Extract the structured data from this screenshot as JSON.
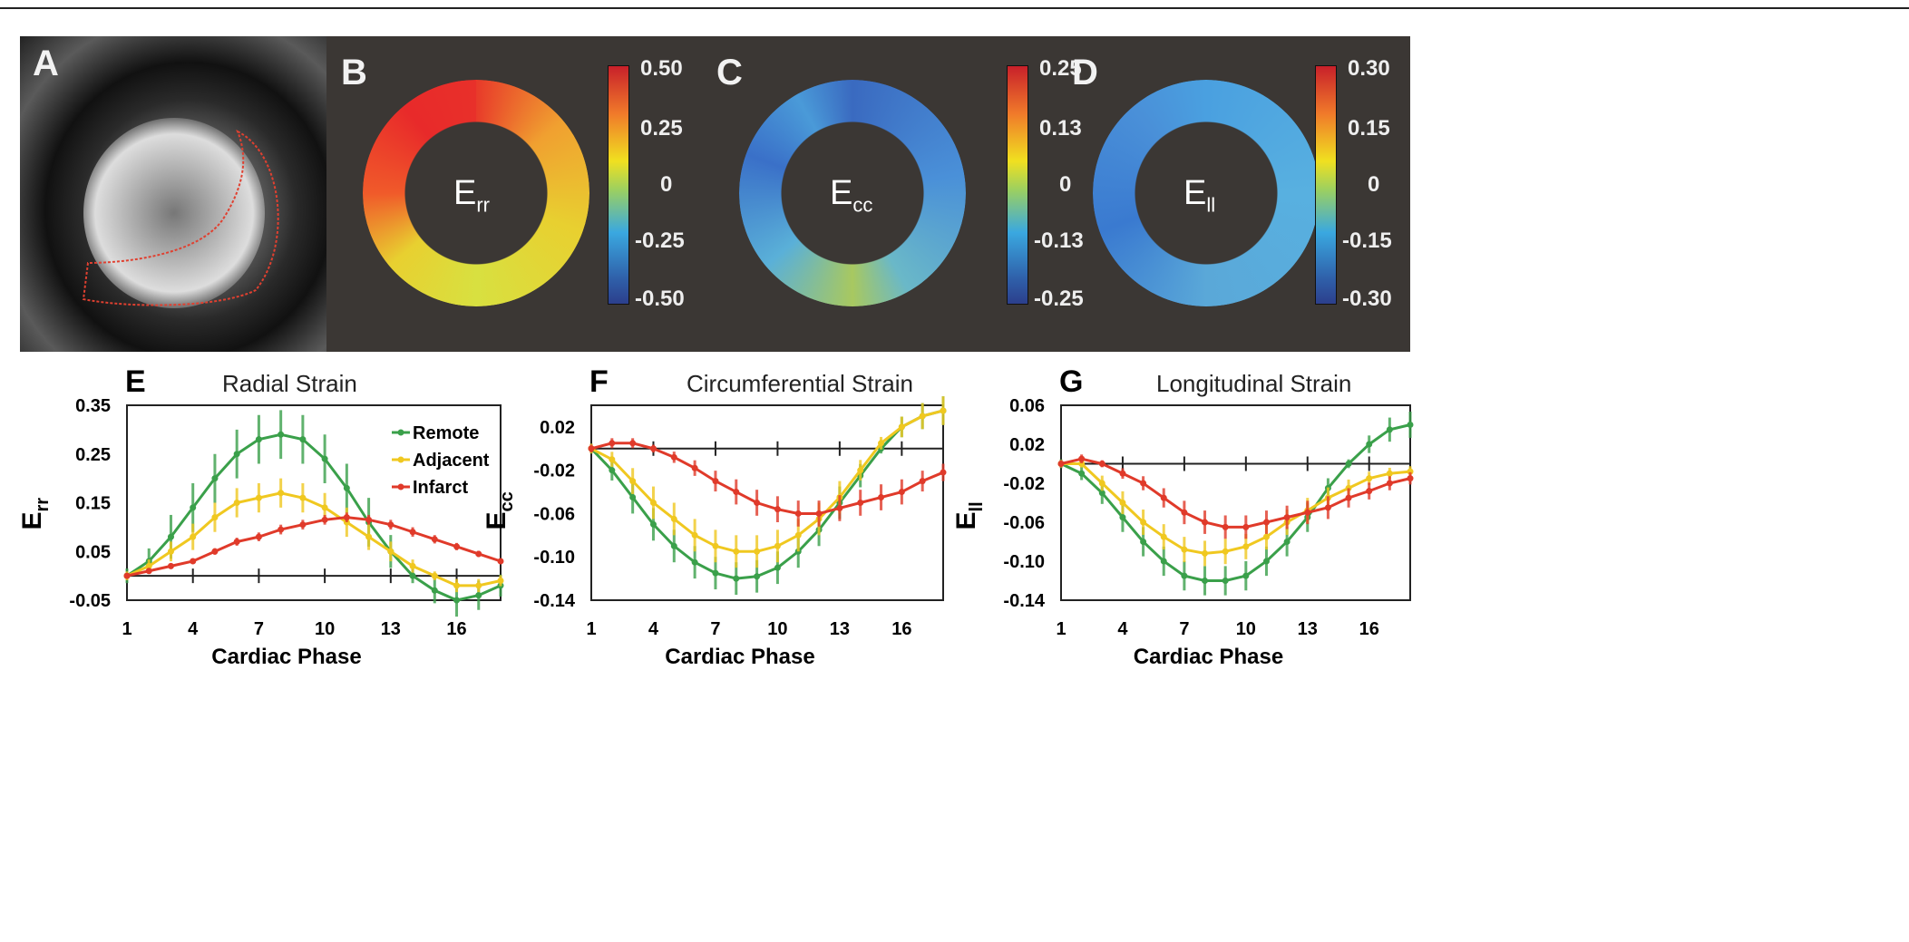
{
  "panels": {
    "A": {
      "label": "A"
    },
    "B": {
      "label": "B",
      "map_label": "E",
      "map_sub": "rr",
      "colorbar": [
        "0.50",
        "0.25",
        "0",
        "-0.25",
        "-0.50"
      ]
    },
    "C": {
      "label": "C",
      "map_label": "E",
      "map_sub": "cc",
      "colorbar": [
        "0.25",
        "0.13",
        "0",
        "-0.13",
        "-0.25"
      ]
    },
    "D": {
      "label": "D",
      "map_label": "E",
      "map_sub": "ll",
      "colorbar": [
        "0.30",
        "0.15",
        "0",
        "-0.15",
        "-0.30"
      ]
    }
  },
  "colors": {
    "Remote": "#3aa04a",
    "Adjacent": "#f0c820",
    "Infarct": "#e03a2a"
  },
  "chart_data": [
    {
      "type": "line",
      "panel": "E",
      "title": "Radial Strain",
      "xlabel": "Cardiac Phase",
      "ylabel": "E",
      "ylabel_sub": "rr",
      "x": [
        1,
        2,
        3,
        4,
        5,
        6,
        7,
        8,
        9,
        10,
        11,
        12,
        13,
        14,
        15,
        16,
        17,
        18
      ],
      "xticks": [
        "1",
        "4",
        "7",
        "10",
        "13",
        "16"
      ],
      "ylim": [
        -0.05,
        0.35
      ],
      "yticks": [
        "0.35",
        "0.25",
        "0.15",
        "0.05",
        "-0.05"
      ],
      "legend": [
        "Remote",
        "Adjacent",
        "Infarct"
      ],
      "legend_position": "top-right",
      "series": [
        {
          "name": "Remote",
          "values": [
            0,
            0.03,
            0.08,
            0.14,
            0.2,
            0.25,
            0.28,
            0.29,
            0.28,
            0.24,
            0.18,
            0.11,
            0.05,
            0,
            -0.03,
            -0.05,
            -0.04,
            -0.02
          ],
          "error": 0.05
        },
        {
          "name": "Adjacent",
          "values": [
            0,
            0.02,
            0.05,
            0.08,
            0.12,
            0.15,
            0.16,
            0.17,
            0.16,
            0.14,
            0.11,
            0.08,
            0.05,
            0.02,
            0,
            -0.02,
            -0.02,
            -0.01
          ],
          "error": 0.03
        },
        {
          "name": "Infarct",
          "values": [
            0,
            0.01,
            0.02,
            0.03,
            0.05,
            0.07,
            0.08,
            0.095,
            0.105,
            0.115,
            0.12,
            0.115,
            0.105,
            0.09,
            0.075,
            0.06,
            0.045,
            0.03
          ],
          "error": 0.01
        }
      ]
    },
    {
      "type": "line",
      "panel": "F",
      "title": "Circumferential Strain",
      "xlabel": "Cardiac Phase",
      "ylabel": "E",
      "ylabel_sub": "cc",
      "x": [
        1,
        2,
        3,
        4,
        5,
        6,
        7,
        8,
        9,
        10,
        11,
        12,
        13,
        14,
        15,
        16,
        17,
        18
      ],
      "xticks": [
        "1",
        "4",
        "7",
        "10",
        "13",
        "16"
      ],
      "ylim": [
        -0.14,
        0.04
      ],
      "yticks": [
        "0.02",
        "-0.02",
        "-0.06",
        "-0.10",
        "-0.14"
      ],
      "series": [
        {
          "name": "Remote",
          "values": [
            0,
            -0.02,
            -0.045,
            -0.07,
            -0.09,
            -0.105,
            -0.115,
            -0.12,
            -0.118,
            -0.11,
            -0.095,
            -0.075,
            -0.05,
            -0.025,
            0,
            0.02,
            0.03,
            0.035
          ],
          "error": 0.015
        },
        {
          "name": "Adjacent",
          "values": [
            0,
            -0.01,
            -0.03,
            -0.05,
            -0.065,
            -0.08,
            -0.09,
            -0.095,
            -0.095,
            -0.09,
            -0.08,
            -0.065,
            -0.045,
            -0.02,
            0.005,
            0.02,
            0.03,
            0.035
          ],
          "error": 0.015
        },
        {
          "name": "Infarct",
          "values": [
            0,
            0.005,
            0.005,
            0,
            -0.008,
            -0.018,
            -0.03,
            -0.04,
            -0.05,
            -0.056,
            -0.06,
            -0.06,
            -0.055,
            -0.05,
            -0.045,
            -0.04,
            -0.03,
            -0.022
          ],
          "error": 0.012
        }
      ]
    },
    {
      "type": "line",
      "panel": "G",
      "title": "Longitudinal Strain",
      "xlabel": "Cardiac Phase",
      "ylabel": "E",
      "ylabel_sub": "ll",
      "x": [
        1,
        2,
        3,
        4,
        5,
        6,
        7,
        8,
        9,
        10,
        11,
        12,
        13,
        14,
        15,
        16,
        17,
        18
      ],
      "xticks": [
        "1",
        "4",
        "7",
        "10",
        "13",
        "16"
      ],
      "ylim": [
        -0.14,
        0.06
      ],
      "yticks": [
        "0.06",
        "0.02",
        "-0.02",
        "-0.06",
        "-0.10",
        "-0.14"
      ],
      "series": [
        {
          "name": "Remote",
          "values": [
            0,
            -0.01,
            -0.03,
            -0.055,
            -0.08,
            -0.1,
            -0.115,
            -0.12,
            -0.12,
            -0.115,
            -0.1,
            -0.08,
            -0.055,
            -0.025,
            0,
            0.02,
            0.035,
            0.04
          ],
          "error": 0.015
        },
        {
          "name": "Adjacent",
          "values": [
            0,
            0,
            -0.02,
            -0.04,
            -0.06,
            -0.075,
            -0.088,
            -0.092,
            -0.09,
            -0.085,
            -0.075,
            -0.06,
            -0.048,
            -0.035,
            -0.025,
            -0.015,
            -0.01,
            -0.008
          ],
          "error": 0.013
        },
        {
          "name": "Infarct",
          "values": [
            0,
            0.005,
            0,
            -0.01,
            -0.02,
            -0.035,
            -0.05,
            -0.06,
            -0.065,
            -0.065,
            -0.06,
            -0.055,
            -0.05,
            -0.045,
            -0.035,
            -0.028,
            -0.02,
            -0.015
          ],
          "error": 0.012
        }
      ]
    }
  ]
}
